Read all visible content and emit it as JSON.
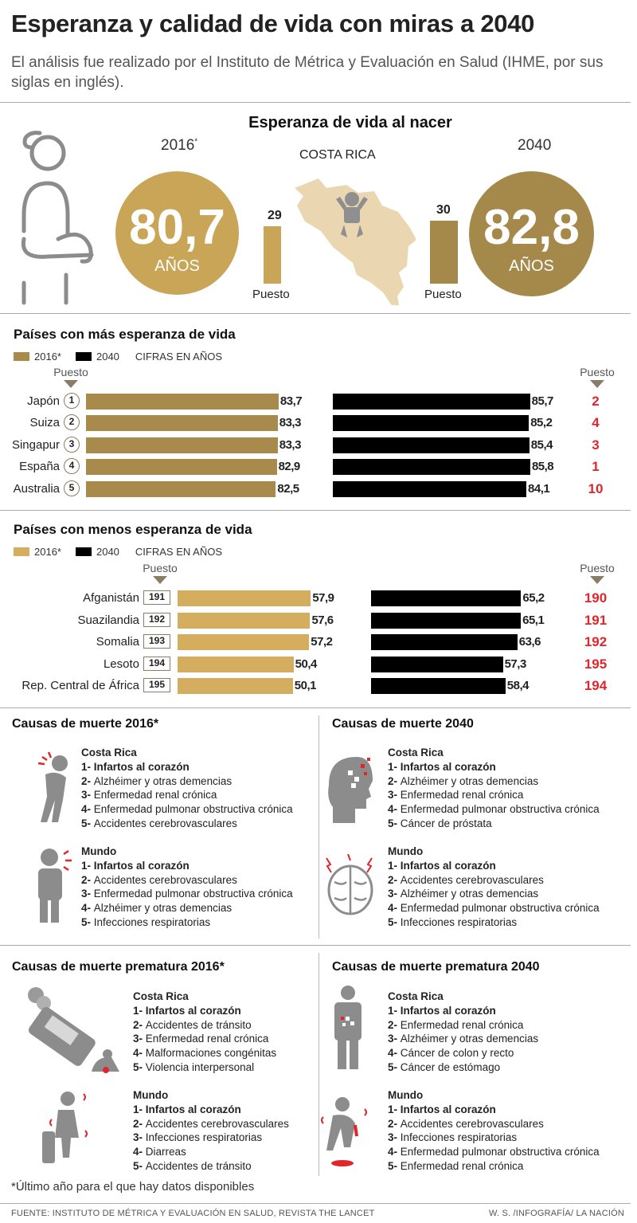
{
  "header": {
    "title": "Esperanza y calidad de vida con miras a 2040",
    "subtitle": "El análisis fue realizado por el Instituto de Métrica y Evaluación en Salud (IHME, por sus siglas en inglés)."
  },
  "birth": {
    "heading": "Esperanza de vida al nacer",
    "country": "COSTA RICA",
    "y2016": {
      "year": "2016",
      "asterisk": "*",
      "value": "80,7",
      "unit": "AÑOS",
      "rank": "29",
      "rank_label": "Puesto",
      "color": "#c9a558"
    },
    "y2040": {
      "year": "2040",
      "value": "82,8",
      "unit": "AÑOS",
      "rank": "30",
      "rank_label": "Puesto",
      "color": "#a5894a"
    }
  },
  "chart_data": [
    {
      "type": "bar",
      "title": "Países con más esperanza de vida",
      "legend": [
        "2016*",
        "2040"
      ],
      "note": "CIFRAS EN AÑOS",
      "rank_header": "Puesto",
      "categories": [
        "Japón",
        "Suiza",
        "Singapur",
        "España",
        "Australia"
      ],
      "rank_2016": [
        "1",
        "2",
        "3",
        "4",
        "5"
      ],
      "rank_2040": [
        "2",
        "4",
        "3",
        "1",
        "10"
      ],
      "series": [
        {
          "name": "2016*",
          "values": [
            83.7,
            83.3,
            83.3,
            82.9,
            82.5
          ],
          "labels": [
            "83,7",
            "83,3",
            "83,3",
            "82,9",
            "82,5"
          ],
          "color": "#a88a4c"
        },
        {
          "name": "2040",
          "values": [
            85.7,
            85.2,
            85.4,
            85.8,
            84.1
          ],
          "labels": [
            "85,7",
            "85,2",
            "85,4",
            "85,8",
            "84,1"
          ],
          "color": "#000000"
        }
      ]
    },
    {
      "type": "bar",
      "title": "Países con menos esperanza de vida",
      "legend": [
        "2016*",
        "2040"
      ],
      "note": "CIFRAS EN AÑOS",
      "rank_header": "Puesto",
      "categories": [
        "Afganistán",
        "Suazilandia",
        "Somalia",
        "Lesoto",
        "Rep. Central de África"
      ],
      "rank_2016": [
        "191",
        "192",
        "193",
        "194",
        "195"
      ],
      "rank_2040": [
        "190",
        "191",
        "192",
        "195",
        "194"
      ],
      "series": [
        {
          "name": "2016*",
          "values": [
            57.9,
            57.6,
            57.2,
            50.4,
            50.1
          ],
          "labels": [
            "57,9",
            "57,6",
            "57,2",
            "50,4",
            "50,1"
          ],
          "color": "#d5ad5e"
        },
        {
          "name": "2040",
          "values": [
            65.2,
            65.1,
            63.6,
            57.3,
            58.4
          ],
          "labels": [
            "65,2",
            "65,1",
            "63,6",
            "57,3",
            "58,4"
          ],
          "color": "#000000"
        }
      ]
    }
  ],
  "causes": [
    {
      "heading": "Causas de muerte 2016*",
      "groups": [
        {
          "loc": "Costa Rica",
          "items": [
            "Infartos al corazón",
            "Alzhéimer y otras demencias",
            "Enfermedad renal crónica",
            "Enfermedad pulmonar obstructiva crónica",
            "Accidentes cerebrovasculares"
          ]
        },
        {
          "loc": "Mundo",
          "items": [
            "Infartos al corazón",
            "Accidentes cerebrovasculares",
            "Enfermedad pulmonar obstructiva crónica",
            "Alzhéimer y otras demencias",
            "Infecciones respiratorias"
          ]
        }
      ]
    },
    {
      "heading": "Causas de muerte 2040",
      "groups": [
        {
          "loc": "Costa Rica",
          "items": [
            "Infartos al corazón",
            "Alzhéimer y otras demencias",
            "Enfermedad renal crónica",
            "Enfermedad pulmonar obstructiva crónica",
            "Cáncer de próstata"
          ]
        },
        {
          "loc": "Mundo",
          "items": [
            "Infartos al corazón",
            "Accidentes cerebrovasculares",
            "Alzhéimer y otras demencias",
            "Enfermedad pulmonar obstructiva crónica",
            "Infecciones respiratorias"
          ]
        }
      ]
    },
    {
      "heading": "Causas de muerte prematura 2016*",
      "groups": [
        {
          "loc": "Costa Rica",
          "items": [
            "Infartos al corazón",
            "Accidentes de tránsito",
            "Enfermedad renal crónica",
            "Malformaciones congénitas",
            "Violencia interpersonal"
          ]
        },
        {
          "loc": "Mundo",
          "items": [
            "Infartos al corazón",
            "Accidentes cerebrovasculares",
            "Infecciones respiratorias",
            "Diarreas",
            "Accidentes de tránsito"
          ]
        }
      ]
    },
    {
      "heading": "Causas de muerte prematura 2040",
      "groups": [
        {
          "loc": "Costa Rica",
          "items": [
            "Infartos al corazón",
            "Enfermedad renal crónica",
            "Alzhéimer y otras demencias",
            "Cáncer de colon y recto",
            "Cáncer de estómago"
          ]
        },
        {
          "loc": "Mundo",
          "items": [
            "Infartos al corazón",
            "Accidentes cerebrovasculares",
            "Infecciones respiratorias",
            "Enfermedad pulmonar obstructiva crónica",
            "Enfermedad renal crónica"
          ]
        }
      ]
    }
  ],
  "footnote": "*Último año para el que hay datos disponibles",
  "footer": {
    "source": "FUENTE: INSTITUTO DE MÉTRICA Y EVALUACIÓN EN SALUD, REVISTA THE LANCET",
    "credit": "W. S. /INFOGRAFÍA/ LA NACIÓN"
  },
  "colors": {
    "accent_red": "#e0262b",
    "gold_2016": "#c9a558",
    "gold_2040": "#a5894a",
    "icon_gray": "#8c8c8c"
  }
}
